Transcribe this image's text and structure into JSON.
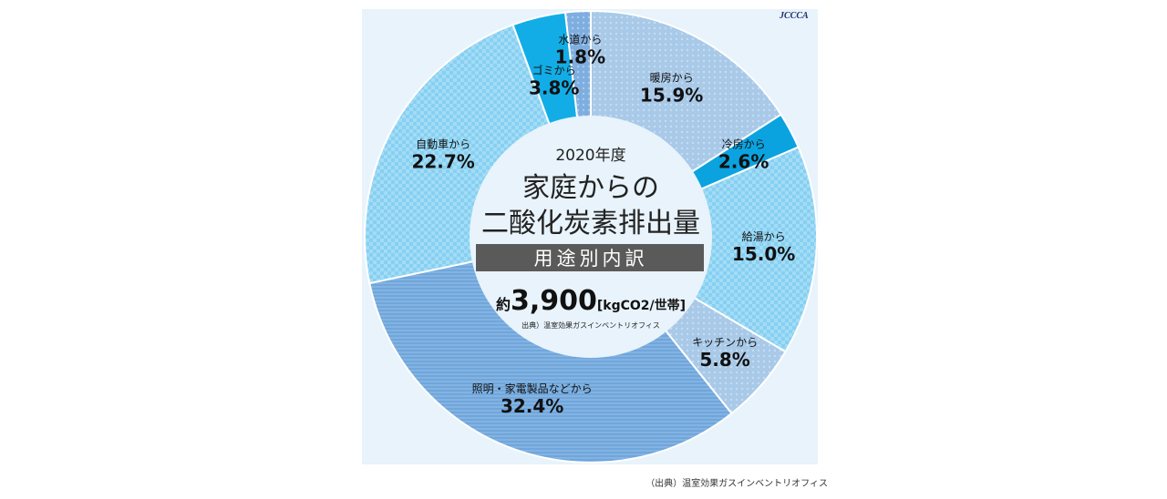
{
  "chart_data": {
    "type": "pie",
    "donut": true,
    "title": "家庭からの二酸化炭素排出量",
    "year": "2020年度",
    "subtitle": "用途別内訳",
    "total_prefix": "約",
    "total_value": "3,900",
    "total_unit": "[kgCO2/世帯]",
    "inner_source": "出典）温室効果ガスインベントリオフィス",
    "logo": "JCCCA",
    "categories": [
      "暖房から",
      "冷房から",
      "給湯から",
      "キッチンから",
      "照明・家電製品などから",
      "自動車から",
      "ゴミから",
      "水道から"
    ],
    "values": [
      15.9,
      2.6,
      15.0,
      5.8,
      32.4,
      22.7,
      3.8,
      1.8
    ],
    "value_labels": [
      "15.9%",
      "2.6%",
      "15.0%",
      "5.8%",
      "32.4%",
      "22.7%",
      "3.8%",
      "1.8%"
    ],
    "colors": [
      "#a8c9e8",
      "#0aa3e0",
      "#86d0f2",
      "#a8c9e8",
      "#6fa6dc",
      "#86d0f2",
      "#12ade6",
      "#7eaee0"
    ],
    "start": "12 o'clock, clockwise"
  },
  "footer": {
    "source": "（出典）温室効果ガスインベントリオフィス"
  }
}
